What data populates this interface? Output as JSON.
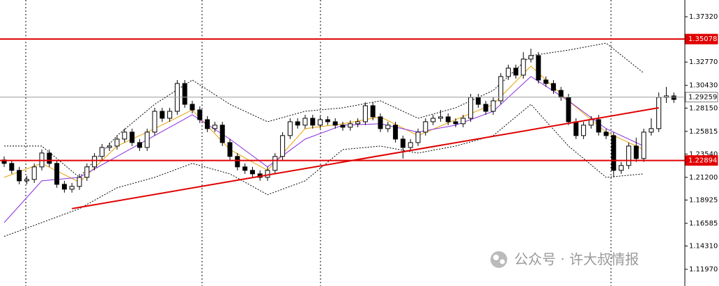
{
  "chart_data": {
    "type": "candlestick",
    "ylim": [
      1.10295,
      1.39
    ],
    "yticks": [
      {
        "value": 1.3732,
        "label": "1.37320"
      },
      {
        "value": 1.3277,
        "label": "1.32770"
      },
      {
        "value": 1.3043,
        "label": "1.30430"
      },
      {
        "value": 1.2815,
        "label": "1.28150"
      },
      1.25815,
      {
        "value": 1.2354,
        "label": "1.23540"
      },
      {
        "value": 1.212,
        "label": "1.21200"
      },
      1.18925,
      1.16585,
      {
        "value": 1.1431,
        "label": "1.14310"
      },
      {
        "value": 1.1197,
        "label": "1.11970"
      }
    ],
    "candles": [
      [
        1.2295,
        1.233,
        1.2225,
        1.226
      ],
      [
        1.226,
        1.2295,
        1.2155,
        1.219
      ],
      [
        1.219,
        1.2225,
        1.205,
        1.2085
      ],
      [
        1.2085,
        1.2134,
        1.205,
        1.2099
      ],
      [
        1.2099,
        1.226,
        1.2064,
        1.2225
      ],
      [
        1.2225,
        1.2399,
        1.219,
        1.2364
      ],
      [
        1.2364,
        1.2399,
        1.2225,
        1.226
      ],
      [
        1.226,
        1.2295,
        1.2015,
        1.205
      ],
      [
        1.205,
        1.2085,
        1.1967,
        1.2001
      ],
      [
        1.2001,
        1.2064,
        1.1967,
        1.2029
      ],
      [
        1.2029,
        1.2155,
        1.1994,
        1.212
      ],
      [
        1.212,
        1.226,
        1.2085,
        1.2225
      ],
      [
        1.2225,
        1.2364,
        1.219,
        1.233
      ],
      [
        1.233,
        1.2455,
        1.2295,
        1.242
      ],
      [
        1.242,
        1.2469,
        1.2385,
        1.2434
      ],
      [
        1.2434,
        1.2539,
        1.2399,
        1.2504
      ],
      [
        1.2504,
        1.2609,
        1.2469,
        1.2574
      ],
      [
        1.2574,
        1.2609,
        1.2434,
        1.2469
      ],
      [
        1.2469,
        1.2504,
        1.2385,
        1.242
      ],
      [
        1.242,
        1.2609,
        1.2385,
        1.2574
      ],
      [
        1.2574,
        1.2818,
        1.2539,
        1.2783
      ],
      [
        1.2783,
        1.2818,
        1.2678,
        1.2713
      ],
      [
        1.2713,
        1.2818,
        1.2678,
        1.2783
      ],
      [
        1.2783,
        1.3097,
        1.2748,
        1.3062
      ],
      [
        1.3062,
        1.3097,
        1.2818,
        1.2853
      ],
      [
        1.2853,
        1.2888,
        1.2762,
        1.2797
      ],
      [
        1.2797,
        1.2832,
        1.2665,
        1.2699
      ],
      [
        1.2699,
        1.2734,
        1.2574,
        1.2609
      ],
      [
        1.2609,
        1.2678,
        1.2574,
        1.2644
      ],
      [
        1.2644,
        1.2678,
        1.2434,
        1.2469
      ],
      [
        1.2469,
        1.2504,
        1.2295,
        1.233
      ],
      [
        1.233,
        1.2364,
        1.219,
        1.2225
      ],
      [
        1.2225,
        1.226,
        1.2155,
        1.219
      ],
      [
        1.219,
        1.2225,
        1.212,
        1.2155
      ],
      [
        1.2155,
        1.219,
        1.2085,
        1.212
      ],
      [
        1.212,
        1.2225,
        1.2085,
        1.219
      ],
      [
        1.219,
        1.2364,
        1.2155,
        1.233
      ],
      [
        1.233,
        1.2574,
        1.2295,
        1.2539
      ],
      [
        1.2539,
        1.2713,
        1.2504,
        1.2678
      ],
      [
        1.2678,
        1.2713,
        1.2609,
        1.2644
      ],
      [
        1.2644,
        1.2748,
        1.2609,
        1.2713
      ],
      [
        1.2713,
        1.2748,
        1.2609,
        1.2644
      ],
      [
        1.2644,
        1.2734,
        1.2609,
        1.2699
      ],
      [
        1.2699,
        1.2734,
        1.2644,
        1.2678
      ],
      [
        1.2678,
        1.2713,
        1.2609,
        1.2644
      ],
      [
        1.2644,
        1.2678,
        1.2588,
        1.2623
      ],
      [
        1.2623,
        1.2692,
        1.2588,
        1.2658
      ],
      [
        1.2658,
        1.2713,
        1.2623,
        1.2678
      ],
      [
        1.2678,
        1.2874,
        1.2644,
        1.2839
      ],
      [
        1.2839,
        1.2874,
        1.2692,
        1.2727
      ],
      [
        1.2727,
        1.2762,
        1.2574,
        1.2609
      ],
      [
        1.2609,
        1.2678,
        1.2574,
        1.2644
      ],
      [
        1.2644,
        1.2678,
        1.2469,
        1.2504
      ],
      [
        1.2504,
        1.2539,
        1.2309,
        1.242
      ],
      [
        1.242,
        1.2504,
        1.2385,
        1.2469
      ],
      [
        1.2469,
        1.2609,
        1.2434,
        1.2574
      ],
      [
        1.2574,
        1.2713,
        1.2539,
        1.2678
      ],
      [
        1.2678,
        1.2748,
        1.2644,
        1.2713
      ],
      [
        1.2713,
        1.2797,
        1.2678,
        1.2727
      ],
      [
        1.2727,
        1.2762,
        1.2644,
        1.2678
      ],
      [
        1.2678,
        1.2713,
        1.2623,
        1.2658
      ],
      [
        1.2658,
        1.2748,
        1.2623,
        1.2713
      ],
      [
        1.2713,
        1.2958,
        1.2678,
        1.2923
      ],
      [
        1.2923,
        1.2958,
        1.2818,
        1.2853
      ],
      [
        1.2853,
        1.2888,
        1.2748,
        1.2783
      ],
      [
        1.2783,
        1.2923,
        1.2748,
        1.2888
      ],
      [
        1.2888,
        1.3167,
        1.2853,
        1.3132
      ],
      [
        1.3132,
        1.3251,
        1.3097,
        1.3216
      ],
      [
        1.3216,
        1.3251,
        1.3111,
        1.3146
      ],
      [
        1.3146,
        1.3377,
        1.3111,
        1.3307
      ],
      [
        1.3307,
        1.3411,
        1.3272,
        1.3342
      ],
      [
        1.3342,
        1.3377,
        1.3062,
        1.3097
      ],
      [
        1.3097,
        1.3132,
        1.3028,
        1.3062
      ],
      [
        1.3062,
        1.3097,
        1.2958,
        1.2993
      ],
      [
        1.2993,
        1.3028,
        1.2888,
        1.2923
      ],
      [
        1.2923,
        1.2958,
        1.2644,
        1.2678
      ],
      [
        1.2678,
        1.2713,
        1.2504,
        1.2539
      ],
      [
        1.2539,
        1.2678,
        1.2504,
        1.2644
      ],
      [
        1.2644,
        1.2734,
        1.2609,
        1.2699
      ],
      [
        1.2699,
        1.2748,
        1.2539,
        1.2574
      ],
      [
        1.2574,
        1.2609,
        1.2504,
        1.2539
      ],
      [
        1.2539,
        1.2574,
        1.212,
        1.219
      ],
      [
        1.219,
        1.2274,
        1.2155,
        1.2239
      ],
      [
        1.2239,
        1.2469,
        1.2204,
        1.2434
      ],
      [
        1.2434,
        1.2518,
        1.2274,
        1.2309
      ],
      [
        1.2309,
        1.2609,
        1.2274,
        1.2574
      ],
      [
        1.2574,
        1.2713,
        1.2539,
        1.2609
      ],
      [
        1.2609,
        1.2972,
        1.2574,
        1.2923
      ],
      [
        1.2923,
        1.3028,
        1.2867,
        1.2937
      ],
      [
        1.2937,
        1.2972,
        1.2867,
        1.2902
      ]
    ],
    "series": [
      {
        "color": "#e8a000",
        "dash": false,
        "values": [
          1.212,
          1.226,
          1.2071,
          1.2434,
          1.2609,
          1.2797,
          1.2399,
          1.219,
          1.2609,
          1.2658,
          1.2727,
          1.2539,
          1.2699,
          1.2853,
          1.3237,
          1.2888,
          1.2574,
          1.2399
        ]
      },
      {
        "color": "#8a2be2",
        "dash": false,
        "values": [
          1.1666,
          1.2085,
          1.212,
          1.233,
          1.2539,
          1.2748,
          1.2504,
          1.2225,
          1.2504,
          1.2644,
          1.2658,
          1.2574,
          1.2644,
          1.2783,
          1.3132,
          1.2888,
          1.2609,
          1.2434
        ]
      },
      {
        "color": "#000000",
        "dash": true,
        "values": [
          1.2434,
          1.2434,
          1.212,
          1.2539,
          1.2853,
          1.3097,
          1.2853,
          1.2678,
          1.2783,
          1.2818,
          1.2888,
          1.2713,
          1.2818,
          1.2993,
          1.3342,
          1.3397,
          1.3467,
          1.3167
        ]
      },
      {
        "color": "#000000",
        "dash": true,
        "values": [
          1.1527,
          1.1666,
          1.1806,
          1.2015,
          1.212,
          1.226,
          1.2155,
          1.1946,
          1.2085,
          1.2399,
          1.2434,
          1.2364,
          1.2434,
          1.2539,
          1.2853,
          1.2434,
          1.212,
          1.2155
        ]
      }
    ],
    "trendline": {
      "color": "#e00000",
      "values": [
        1.1806,
        1.2818
      ]
    },
    "levels": [
      {
        "value": 1.35078,
        "color": "#e00000"
      },
      {
        "value": 1.29259,
        "color": "#a0a0a0"
      },
      {
        "value": 1.22894,
        "color": "#e00000"
      }
    ],
    "watermark": "公众号 · 许大叔情报"
  }
}
